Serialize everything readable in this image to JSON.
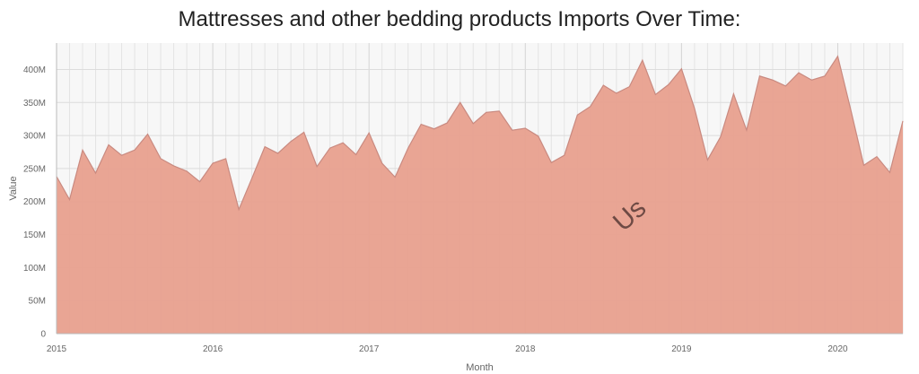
{
  "title": "Mattresses and other bedding products Imports Over Time:",
  "chart_data": {
    "type": "area",
    "title": "Mattresses and other bedding products Imports Over Time:",
    "xlabel": "Month",
    "ylabel": "Value",
    "ylim": [
      0,
      440000000
    ],
    "y_ticks": [
      0,
      50000000,
      100000000,
      150000000,
      200000000,
      250000000,
      300000000,
      350000000,
      400000000
    ],
    "y_tick_labels": [
      "0",
      "50M",
      "100M",
      "150M",
      "200M",
      "250M",
      "300M",
      "350M",
      "400M"
    ],
    "x_tick_labels": [
      "2015",
      "2016",
      "2017",
      "2018",
      "2019",
      "2020"
    ],
    "x_range": [
      "2015-01",
      "2020-06"
    ],
    "grid": true,
    "series": [
      {
        "name": "Us",
        "color": "#e8a08e",
        "line_color": "#c98a80",
        "x": [
          "2015-01",
          "2015-02",
          "2015-03",
          "2015-04",
          "2015-05",
          "2015-06",
          "2015-07",
          "2015-08",
          "2015-09",
          "2015-10",
          "2015-11",
          "2015-12",
          "2016-01",
          "2016-02",
          "2016-03",
          "2016-04",
          "2016-05",
          "2016-06",
          "2016-07",
          "2016-08",
          "2016-09",
          "2016-10",
          "2016-11",
          "2016-12",
          "2017-01",
          "2017-02",
          "2017-03",
          "2017-04",
          "2017-05",
          "2017-06",
          "2017-07",
          "2017-08",
          "2017-09",
          "2017-10",
          "2017-11",
          "2017-12",
          "2018-01",
          "2018-02",
          "2018-03",
          "2018-04",
          "2018-05",
          "2018-06",
          "2018-07",
          "2018-08",
          "2018-09",
          "2018-10",
          "2018-11",
          "2018-12",
          "2019-01",
          "2019-02",
          "2019-03",
          "2019-04",
          "2019-05",
          "2019-06",
          "2019-07",
          "2019-08",
          "2019-09",
          "2019-10",
          "2019-11",
          "2019-12",
          "2020-01",
          "2020-02",
          "2020-03",
          "2020-04",
          "2020-05",
          "2020-06"
        ],
        "values": [
          238000000,
          203000000,
          278000000,
          243000000,
          286000000,
          270000000,
          278000000,
          302000000,
          265000000,
          254000000,
          246000000,
          230000000,
          258000000,
          265000000,
          188000000,
          235000000,
          283000000,
          273000000,
          291000000,
          305000000,
          253000000,
          281000000,
          289000000,
          271000000,
          304000000,
          258000000,
          237000000,
          281000000,
          317000000,
          310000000,
          319000000,
          350000000,
          318000000,
          335000000,
          337000000,
          308000000,
          311000000,
          299000000,
          259000000,
          270000000,
          331000000,
          344000000,
          376000000,
          364000000,
          374000000,
          414000000,
          362000000,
          377000000,
          401000000,
          341000000,
          263000000,
          298000000,
          363000000,
          308000000,
          390000000,
          384000000,
          375000000,
          395000000,
          384000000,
          390000000,
          420000000,
          339000000,
          255000000,
          268000000,
          244000000,
          322000000
        ]
      }
    ]
  }
}
